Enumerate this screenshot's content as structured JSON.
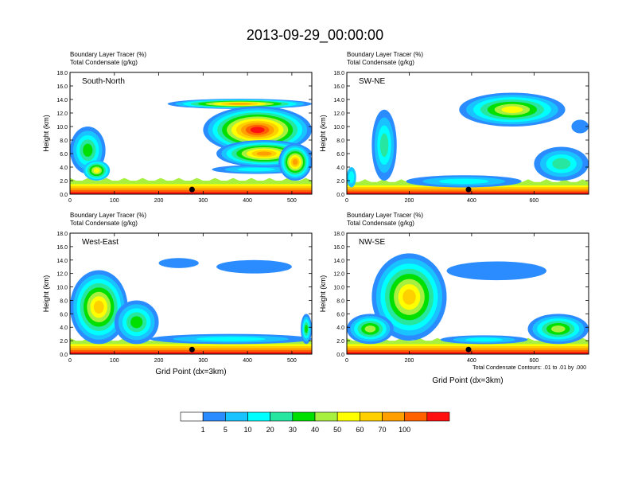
{
  "figure": {
    "title": "2013-09-29_00:00:00",
    "contour_note": "Total Condensate Contours: .01 to .01 by .000"
  },
  "chart_data": {
    "type": "heatmap",
    "variables": [
      "Boundary Layer Tracer",
      "Total Condensate"
    ],
    "colorbar": {
      "colors": [
        "#ffffff",
        "#2b8cff",
        "#19c3ff",
        "#00ffff",
        "#26e6a0",
        "#00e000",
        "#a8f040",
        "#ffff00",
        "#ffd000",
        "#ffa000",
        "#ff6000",
        "#ff1010"
      ],
      "levels": [
        1,
        5,
        10,
        20,
        30,
        40,
        50,
        60,
        70,
        100
      ],
      "units": "%"
    },
    "panels": [
      {
        "title": "South-North",
        "subtitle_1": "Boundary Layer Tracer   (%)",
        "subtitle_2": "Total Condensate   (g/kg)",
        "ylabel": "Height (km)",
        "xlabel": "",
        "ylim": [
          0,
          18
        ],
        "yticks": [
          "0.0",
          "2.0",
          "4.0",
          "6.0",
          "8.0",
          "10.0",
          "12.0",
          "14.0",
          "16.0",
          "18.0"
        ],
        "xlim": [
          0,
          545
        ],
        "xticks": [
          0,
          100,
          200,
          300,
          400,
          500
        ],
        "marker_x": 275,
        "marker_y": 0.45,
        "features": [
          {
            "x0": 0,
            "x1": 545,
            "top": 1.8,
            "bl": true
          },
          {
            "x0": 220,
            "x1": 545,
            "bottom": 12.6,
            "top": 14.1,
            "level": 1,
            "peak": 9
          },
          {
            "x0": 300,
            "x1": 545,
            "bottom": 6.0,
            "top": 13.0,
            "level": 1,
            "peak": 11
          },
          {
            "x0": 320,
            "x1": 520,
            "bottom": 3.0,
            "top": 4.3,
            "level": 1,
            "peak": 3
          },
          {
            "x0": 330,
            "x1": 545,
            "bottom": 4.0,
            "top": 8.0,
            "level": 1,
            "peak": 9
          },
          {
            "x0": 470,
            "x1": 545,
            "bottom": 2.0,
            "top": 7.5,
            "level": 1,
            "peak": 9
          },
          {
            "x0": 0,
            "x1": 80,
            "bottom": 3.0,
            "top": 10.0,
            "level": 1,
            "peak": 5
          },
          {
            "x0": 30,
            "x1": 90,
            "bottom": 2.0,
            "top": 5.0,
            "level": 2,
            "peak": 7
          }
        ]
      },
      {
        "title": "SW-NE",
        "subtitle_1": "Boundary Layer Tracer   (%)",
        "subtitle_2": "Total Condensate   (g/kg)",
        "ylabel": "Height (km)",
        "xlabel": "",
        "ylim": [
          0,
          18
        ],
        "yticks": [
          "0.0",
          "2.0",
          "4.0",
          "6.0",
          "8.0",
          "10.0",
          "12.0",
          "14.0",
          "16.0",
          "18.0"
        ],
        "xlim": [
          0,
          775
        ],
        "xticks": [
          0,
          200,
          400,
          600
        ],
        "marker_x": 390,
        "marker_y": 0.45,
        "features": [
          {
            "x0": 0,
            "x1": 775,
            "top": 1.6,
            "bl": true
          },
          {
            "x0": 360,
            "x1": 700,
            "bottom": 10.0,
            "top": 15.0,
            "level": 1,
            "peak": 7
          },
          {
            "x0": 600,
            "x1": 775,
            "bottom": 2.0,
            "top": 7.0,
            "level": 1,
            "peak": 4
          },
          {
            "x0": 80,
            "x1": 160,
            "bottom": 2.0,
            "top": 12.5,
            "level": 1,
            "peak": 4
          },
          {
            "x0": 190,
            "x1": 560,
            "bottom": 1.0,
            "top": 2.8,
            "level": 1,
            "peak": 3
          },
          {
            "x0": 720,
            "x1": 775,
            "bottom": 9.0,
            "top": 11.0,
            "level": 1,
            "peak": 1
          },
          {
            "x0": 0,
            "x1": 30,
            "bottom": 1.0,
            "top": 4.0,
            "level": 2,
            "peak": 3
          }
        ]
      },
      {
        "title": "West-East",
        "subtitle_1": "Boundary Layer Tracer   (%)",
        "subtitle_2": "Total Condensate   (g/kg)",
        "ylabel": "Height (km)",
        "xlabel": "Grid Point (dx=3km)",
        "ylim": [
          0,
          18
        ],
        "yticks": [
          "0.0",
          "2.0",
          "4.0",
          "6.0",
          "8.0",
          "10.0",
          "12.0",
          "14.0",
          "16.0",
          "18.0"
        ],
        "xlim": [
          0,
          545
        ],
        "xticks": [
          0,
          100,
          200,
          300,
          400,
          500
        ],
        "marker_x": 275,
        "marker_y": 0.45,
        "features": [
          {
            "x0": 0,
            "x1": 545,
            "top": 1.8,
            "bl": true
          },
          {
            "x0": 0,
            "x1": 130,
            "bottom": 1.5,
            "top": 12.5,
            "level": 1,
            "peak": 8
          },
          {
            "x0": 100,
            "x1": 200,
            "bottom": 1.5,
            "top": 8.0,
            "level": 1,
            "peak": 5
          },
          {
            "x0": 200,
            "x1": 290,
            "bottom": 12.8,
            "top": 14.3,
            "level": 1,
            "peak": 1
          },
          {
            "x0": 330,
            "x1": 500,
            "bottom": 12.0,
            "top": 14.0,
            "level": 1,
            "peak": 1
          },
          {
            "x0": 180,
            "x1": 545,
            "bottom": 1.5,
            "top": 3.0,
            "level": 1,
            "peak": 3
          },
          {
            "x0": 520,
            "x1": 545,
            "bottom": 1.5,
            "top": 6.0,
            "level": 1,
            "peak": 5
          }
        ]
      },
      {
        "title": "NW-SE",
        "subtitle_1": "Boundary Layer Tracer   (%)",
        "subtitle_2": "Total Condensate   (g/kg)",
        "ylabel": "Height (km)",
        "xlabel": "Grid Point (dx=3km)",
        "ylim": [
          0,
          18
        ],
        "yticks": [
          "0.0",
          "2.0",
          "4.0",
          "6.0",
          "8.0",
          "10.0",
          "12.0",
          "14.0",
          "16.0",
          "18.0"
        ],
        "xlim": [
          0,
          775
        ],
        "xticks": [
          0,
          200,
          400,
          600
        ],
        "marker_x": 390,
        "marker_y": 0.45,
        "features": [
          {
            "x0": 0,
            "x1": 775,
            "top": 1.8,
            "bl": true
          },
          {
            "x0": 80,
            "x1": 320,
            "bottom": 2.0,
            "top": 15.0,
            "level": 1,
            "peak": 8
          },
          {
            "x0": 0,
            "x1": 150,
            "bottom": 1.5,
            "top": 6.0,
            "level": 1,
            "peak": 6
          },
          {
            "x0": 320,
            "x1": 640,
            "bottom": 11.0,
            "top": 13.8,
            "level": 1,
            "peak": 1
          },
          {
            "x0": 580,
            "x1": 775,
            "bottom": 1.5,
            "top": 6.0,
            "level": 1,
            "peak": 6
          },
          {
            "x0": 300,
            "x1": 580,
            "bottom": 1.5,
            "top": 2.8,
            "level": 1,
            "peak": 3
          }
        ]
      }
    ]
  }
}
